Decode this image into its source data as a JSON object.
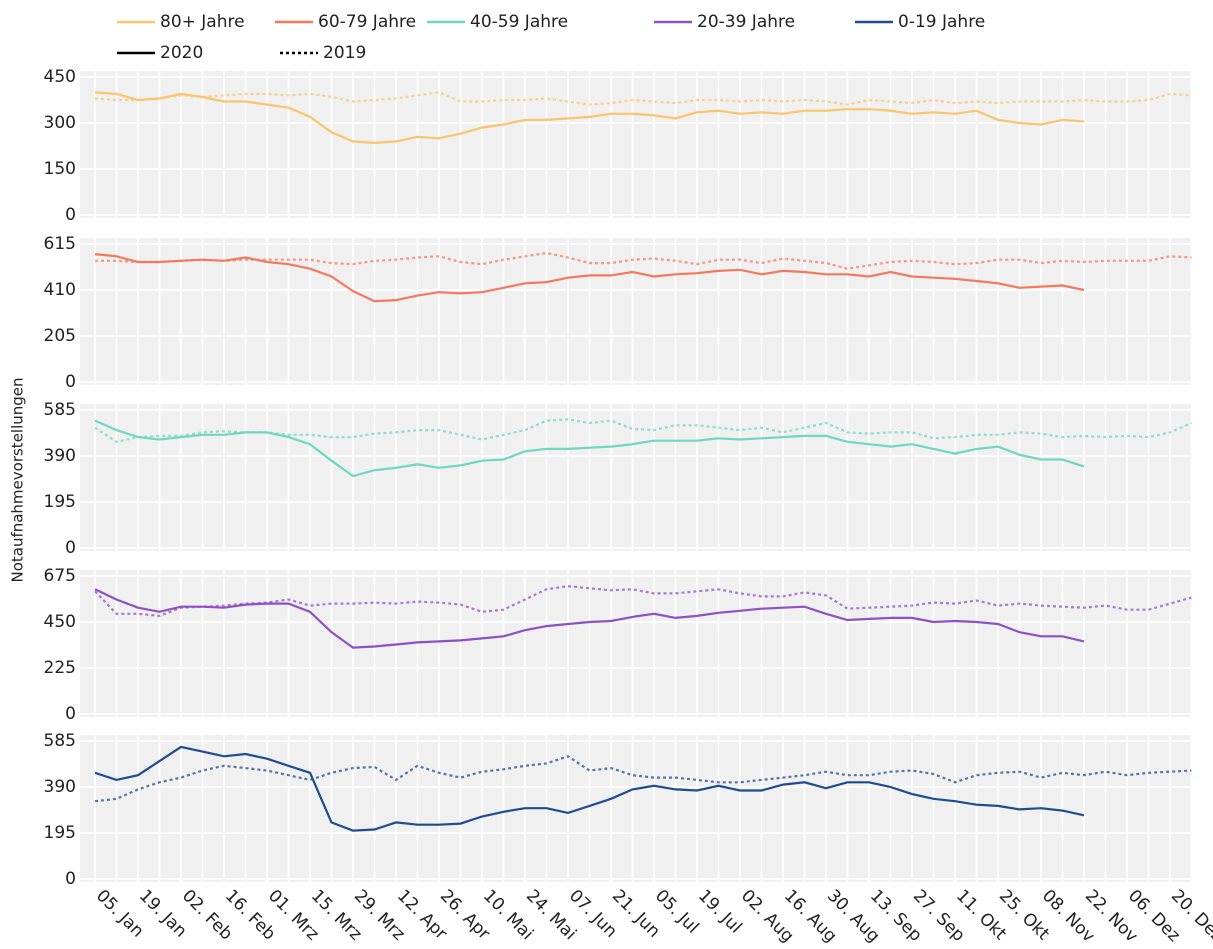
{
  "chart_data": {
    "type": "line",
    "ylabel": "Notaufnahmevorstellungen",
    "categories": [
      "05. Jan",
      null,
      "19. Jan",
      null,
      "02. Feb",
      null,
      "16. Feb",
      null,
      "01. Mrz",
      null,
      "15. Mrz",
      null,
      "29. Mrz",
      null,
      "12. Apr",
      null,
      "26. Apr",
      null,
      "10. Mai",
      null,
      "24. Mai",
      null,
      "07. Jun",
      null,
      "21. Jun",
      null,
      "05. Jul",
      null,
      "19. Jul",
      null,
      "02. Aug",
      null,
      "16. Aug",
      null,
      "30. Aug",
      null,
      "13. Sep",
      null,
      "27. Sep",
      null,
      "11. Okt",
      null,
      "25. Okt",
      null,
      "08. Nov",
      null,
      "22. Nov",
      null,
      "06. Dez",
      null,
      "20. Dez",
      null
    ],
    "styles": [
      {
        "name": "2020",
        "dash": "solid"
      },
      {
        "name": "2019",
        "dash": "dotted"
      }
    ],
    "grid": true,
    "panels": [
      {
        "name": "80+ Jahre",
        "color": "#f9c46b",
        "ylim": [
          0,
          450
        ],
        "yticks": [
          0,
          150,
          300,
          450
        ],
        "series": [
          {
            "values": [
              400,
              395,
              375,
              380,
              395,
              385,
              370,
              370,
              360,
              350,
              320,
              270,
              240,
              235,
              240,
              255,
              250,
              265,
              285,
              295,
              310,
              310,
              315,
              320,
              330,
              330,
              325,
              315,
              335,
              340,
              330,
              335,
              330,
              340,
              340,
              345,
              345,
              340,
              330,
              335,
              330,
              340,
              310,
              300,
              295,
              310,
              305,
              null,
              null,
              null,
              null,
              null
            ]
          },
          {
            "values": [
              380,
              375,
              375,
              380,
              390,
              385,
              390,
              395,
              395,
              390,
              395,
              385,
              370,
              375,
              380,
              390,
              400,
              370,
              370,
              375,
              375,
              380,
              370,
              360,
              365,
              375,
              370,
              365,
              375,
              375,
              370,
              375,
              370,
              375,
              370,
              360,
              375,
              370,
              365,
              375,
              365,
              370,
              365,
              370,
              370,
              370,
              375,
              370,
              370,
              375,
              395,
              390
            ]
          }
        ]
      },
      {
        "name": "60-79 Jahre",
        "color": "#f2795e",
        "ylim": [
          0,
          615
        ],
        "yticks": [
          0,
          205,
          410,
          615
        ],
        "series": [
          {
            "values": [
              570,
              560,
              535,
              535,
              540,
              545,
              540,
              555,
              535,
              525,
              505,
              470,
              405,
              360,
              365,
              385,
              400,
              395,
              400,
              420,
              440,
              445,
              465,
              475,
              475,
              490,
              470,
              480,
              485,
              495,
              500,
              480,
              495,
              490,
              480,
              480,
              470,
              490,
              470,
              465,
              460,
              450,
              440,
              420,
              425,
              430,
              410,
              null,
              null,
              null,
              null,
              null
            ]
          },
          {
            "values": [
              540,
              540,
              535,
              535,
              540,
              545,
              540,
              545,
              545,
              545,
              545,
              530,
              525,
              540,
              545,
              555,
              560,
              535,
              525,
              545,
              560,
              575,
              555,
              530,
              530,
              545,
              550,
              540,
              525,
              545,
              545,
              530,
              550,
              540,
              530,
              505,
              520,
              535,
              540,
              535,
              525,
              530,
              545,
              545,
              530,
              540,
              535,
              540,
              540,
              540,
              560,
              555
            ]
          }
        ]
      },
      {
        "name": "40-59 Jahre",
        "color": "#6fd6c0",
        "ylim": [
          0,
          585
        ],
        "yticks": [
          0,
          195,
          390,
          585
        ],
        "series": [
          {
            "values": [
              540,
              500,
              470,
              460,
              470,
              480,
              480,
              490,
              490,
              470,
              440,
              370,
              305,
              330,
              340,
              355,
              340,
              350,
              370,
              375,
              410,
              420,
              420,
              425,
              430,
              440,
              455,
              455,
              455,
              465,
              460,
              465,
              470,
              475,
              475,
              450,
              440,
              430,
              440,
              420,
              400,
              420,
              430,
              395,
              375,
              375,
              345,
              null,
              null,
              null,
              null,
              null
            ]
          },
          {
            "values": [
              510,
              450,
              470,
              475,
              475,
              490,
              495,
              490,
              490,
              480,
              480,
              470,
              470,
              485,
              490,
              500,
              500,
              480,
              460,
              480,
              500,
              540,
              545,
              530,
              540,
              505,
              500,
              520,
              520,
              510,
              500,
              510,
              490,
              510,
              530,
              490,
              485,
              490,
              490,
              465,
              470,
              480,
              480,
              490,
              485,
              470,
              475,
              470,
              475,
              470,
              490,
              530
            ]
          }
        ]
      },
      {
        "name": "20-39 Jahre",
        "color": "#8e50c4",
        "ylim": [
          0,
          675
        ],
        "yticks": [
          0,
          225,
          450,
          675
        ],
        "series": [
          {
            "values": [
              610,
              560,
              520,
              500,
              525,
              525,
              520,
              535,
              540,
              540,
              500,
              400,
              325,
              330,
              340,
              350,
              355,
              360,
              370,
              380,
              410,
              430,
              440,
              450,
              455,
              475,
              490,
              470,
              480,
              495,
              505,
              515,
              520,
              525,
              490,
              460,
              465,
              470,
              470,
              450,
              455,
              450,
              440,
              400,
              380,
              380,
              355,
              null,
              null,
              null,
              null,
              null
            ]
          },
          {
            "values": [
              600,
              490,
              490,
              480,
              520,
              525,
              530,
              540,
              545,
              560,
              530,
              540,
              540,
              545,
              540,
              550,
              545,
              535,
              500,
              510,
              560,
              610,
              625,
              615,
              605,
              610,
              590,
              590,
              600,
              610,
              590,
              575,
              575,
              595,
              580,
              515,
              520,
              525,
              530,
              545,
              540,
              555,
              530,
              540,
              530,
              525,
              520,
              530,
              510,
              510,
              540,
              570
            ]
          }
        ]
      },
      {
        "name": "0-19 Jahre",
        "color": "#1f4b8f",
        "ylim": [
          0,
          585
        ],
        "yticks": [
          0,
          195,
          390,
          585
        ],
        "series": [
          {
            "values": [
              450,
              420,
              440,
              500,
              560,
              540,
              520,
              530,
              510,
              480,
              450,
              240,
              205,
              210,
              240,
              230,
              230,
              235,
              265,
              285,
              300,
              300,
              280,
              310,
              340,
              380,
              395,
              380,
              375,
              395,
              375,
              375,
              400,
              410,
              385,
              410,
              410,
              390,
              360,
              340,
              330,
              315,
              310,
              295,
              300,
              290,
              270,
              null,
              null,
              null,
              null,
              null
            ]
          },
          {
            "values": [
              330,
              340,
              380,
              410,
              430,
              460,
              480,
              470,
              460,
              440,
              420,
              450,
              470,
              475,
              420,
              480,
              450,
              430,
              455,
              465,
              480,
              490,
              520,
              460,
              470,
              440,
              430,
              430,
              420,
              410,
              410,
              420,
              430,
              440,
              455,
              440,
              440,
              455,
              460,
              445,
              410,
              440,
              450,
              455,
              430,
              450,
              440,
              455,
              440,
              450,
              455,
              460
            ]
          }
        ]
      }
    ]
  }
}
